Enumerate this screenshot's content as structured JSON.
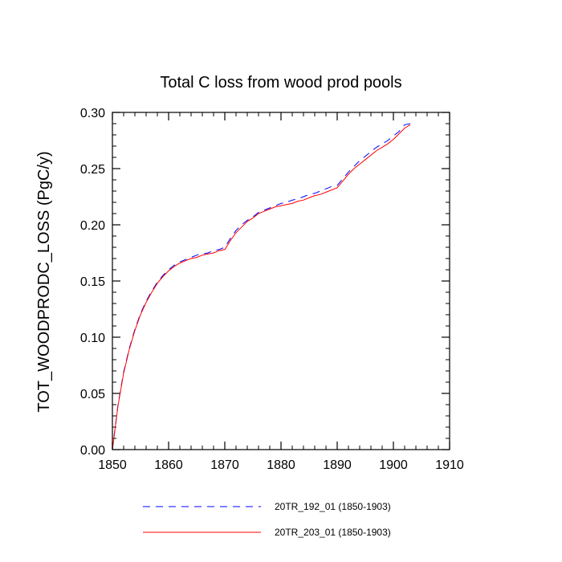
{
  "chart_data": {
    "type": "line",
    "title": "Total C loss from wood prod pools",
    "xlabel": "",
    "ylabel": "TOT_WOODPRODC_LOSS  (PgC/y)",
    "xlim": [
      1850,
      1910
    ],
    "ylim": [
      0,
      0.3
    ],
    "x_ticks": [
      "1850",
      "1860",
      "1870",
      "1880",
      "1890",
      "1900",
      "1910"
    ],
    "y_ticks": [
      "0.00",
      "0.05",
      "0.10",
      "0.15",
      "0.20",
      "0.25",
      "0.30"
    ],
    "grid": false,
    "legend_position": "bottom",
    "series": [
      {
        "name": "20TR_192_01 (1850-1903)",
        "color": "#0000ff",
        "line_style": "dashed",
        "x": [
          1850,
          1851,
          1852,
          1853,
          1854,
          1855,
          1856,
          1857,
          1858,
          1859,
          1860,
          1861,
          1862,
          1863,
          1864,
          1865,
          1866,
          1867,
          1868,
          1869,
          1870,
          1871,
          1872,
          1873,
          1874,
          1875,
          1876,
          1877,
          1878,
          1879,
          1880,
          1881,
          1882,
          1883,
          1884,
          1885,
          1886,
          1887,
          1888,
          1889,
          1890,
          1891,
          1892,
          1893,
          1894,
          1895,
          1896,
          1897,
          1898,
          1899,
          1900,
          1901,
          1902,
          1903
        ],
        "y": [
          0.0,
          0.04,
          0.069,
          0.09,
          0.107,
          0.121,
          0.132,
          0.141,
          0.149,
          0.155,
          0.16,
          0.164,
          0.167,
          0.169,
          0.171,
          0.173,
          0.174,
          0.175,
          0.177,
          0.178,
          0.18,
          0.188,
          0.195,
          0.2,
          0.204,
          0.207,
          0.211,
          0.213,
          0.215,
          0.217,
          0.219,
          0.22,
          0.222,
          0.223,
          0.225,
          0.227,
          0.228,
          0.23,
          0.232,
          0.234,
          0.235,
          0.241,
          0.247,
          0.252,
          0.257,
          0.261,
          0.265,
          0.269,
          0.272,
          0.275,
          0.279,
          0.283,
          0.289,
          0.29
        ]
      },
      {
        "name": "20TR_203_01 (1850-1903)",
        "color": "#ff0000",
        "line_style": "solid",
        "x": [
          1850,
          1851,
          1852,
          1853,
          1854,
          1855,
          1856,
          1857,
          1858,
          1859,
          1860,
          1861,
          1862,
          1863,
          1864,
          1865,
          1866,
          1867,
          1868,
          1869,
          1870,
          1871,
          1872,
          1873,
          1874,
          1875,
          1876,
          1877,
          1878,
          1879,
          1880,
          1881,
          1882,
          1883,
          1884,
          1885,
          1886,
          1887,
          1888,
          1889,
          1890,
          1891,
          1892,
          1893,
          1894,
          1895,
          1896,
          1897,
          1898,
          1899,
          1900,
          1901,
          1902,
          1903
        ],
        "y": [
          0.0,
          0.039,
          0.068,
          0.089,
          0.106,
          0.12,
          0.131,
          0.14,
          0.148,
          0.154,
          0.159,
          0.163,
          0.166,
          0.168,
          0.17,
          0.171,
          0.173,
          0.174,
          0.175,
          0.177,
          0.178,
          0.186,
          0.193,
          0.198,
          0.203,
          0.206,
          0.21,
          0.212,
          0.214,
          0.216,
          0.217,
          0.218,
          0.219,
          0.221,
          0.222,
          0.224,
          0.226,
          0.227,
          0.229,
          0.231,
          0.233,
          0.239,
          0.245,
          0.25,
          0.254,
          0.258,
          0.262,
          0.266,
          0.269,
          0.272,
          0.276,
          0.281,
          0.286,
          0.289
        ]
      }
    ]
  }
}
